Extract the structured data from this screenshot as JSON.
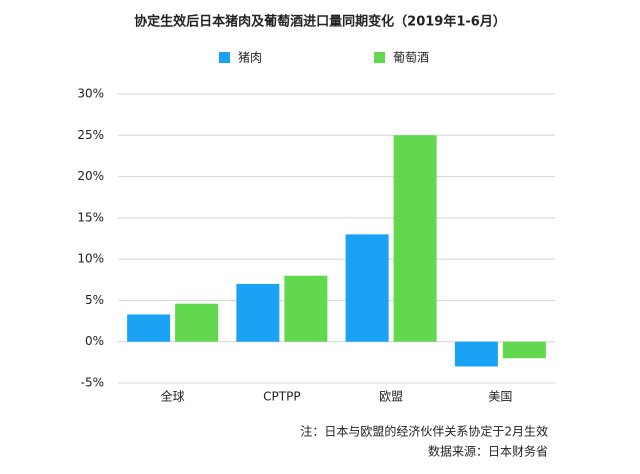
{
  "chart_data": {
    "type": "bar",
    "title": "协定生效后日本猪肉及葡萄酒进口量同期变化（2019年1-6月）",
    "categories": [
      "全球",
      "CPTPP",
      "欧盟",
      "美国"
    ],
    "series": [
      {
        "name": "猪肉",
        "color": "#1aa3f5",
        "values": [
          3.3,
          7,
          13,
          -3
        ]
      },
      {
        "name": "葡萄酒",
        "color": "#62d84e",
        "values": [
          4.6,
          8,
          25,
          -2
        ]
      }
    ],
    "ylim": [
      -5,
      30
    ],
    "yticks": [
      {
        "value": -5,
        "label": "-5%"
      },
      {
        "value": 0,
        "label": "0%"
      },
      {
        "value": 5,
        "label": "5%"
      },
      {
        "value": 10,
        "label": "10%"
      },
      {
        "value": 15,
        "label": "15%"
      },
      {
        "value": 20,
        "label": "20%"
      },
      {
        "value": 25,
        "label": "25%"
      },
      {
        "value": 30,
        "label": "30%"
      }
    ],
    "grid": true,
    "legend": "top",
    "annotations": [
      "注：日本与欧盟的经济伙伴关系协定于2月生效",
      "数据来源：日本财务省"
    ]
  }
}
